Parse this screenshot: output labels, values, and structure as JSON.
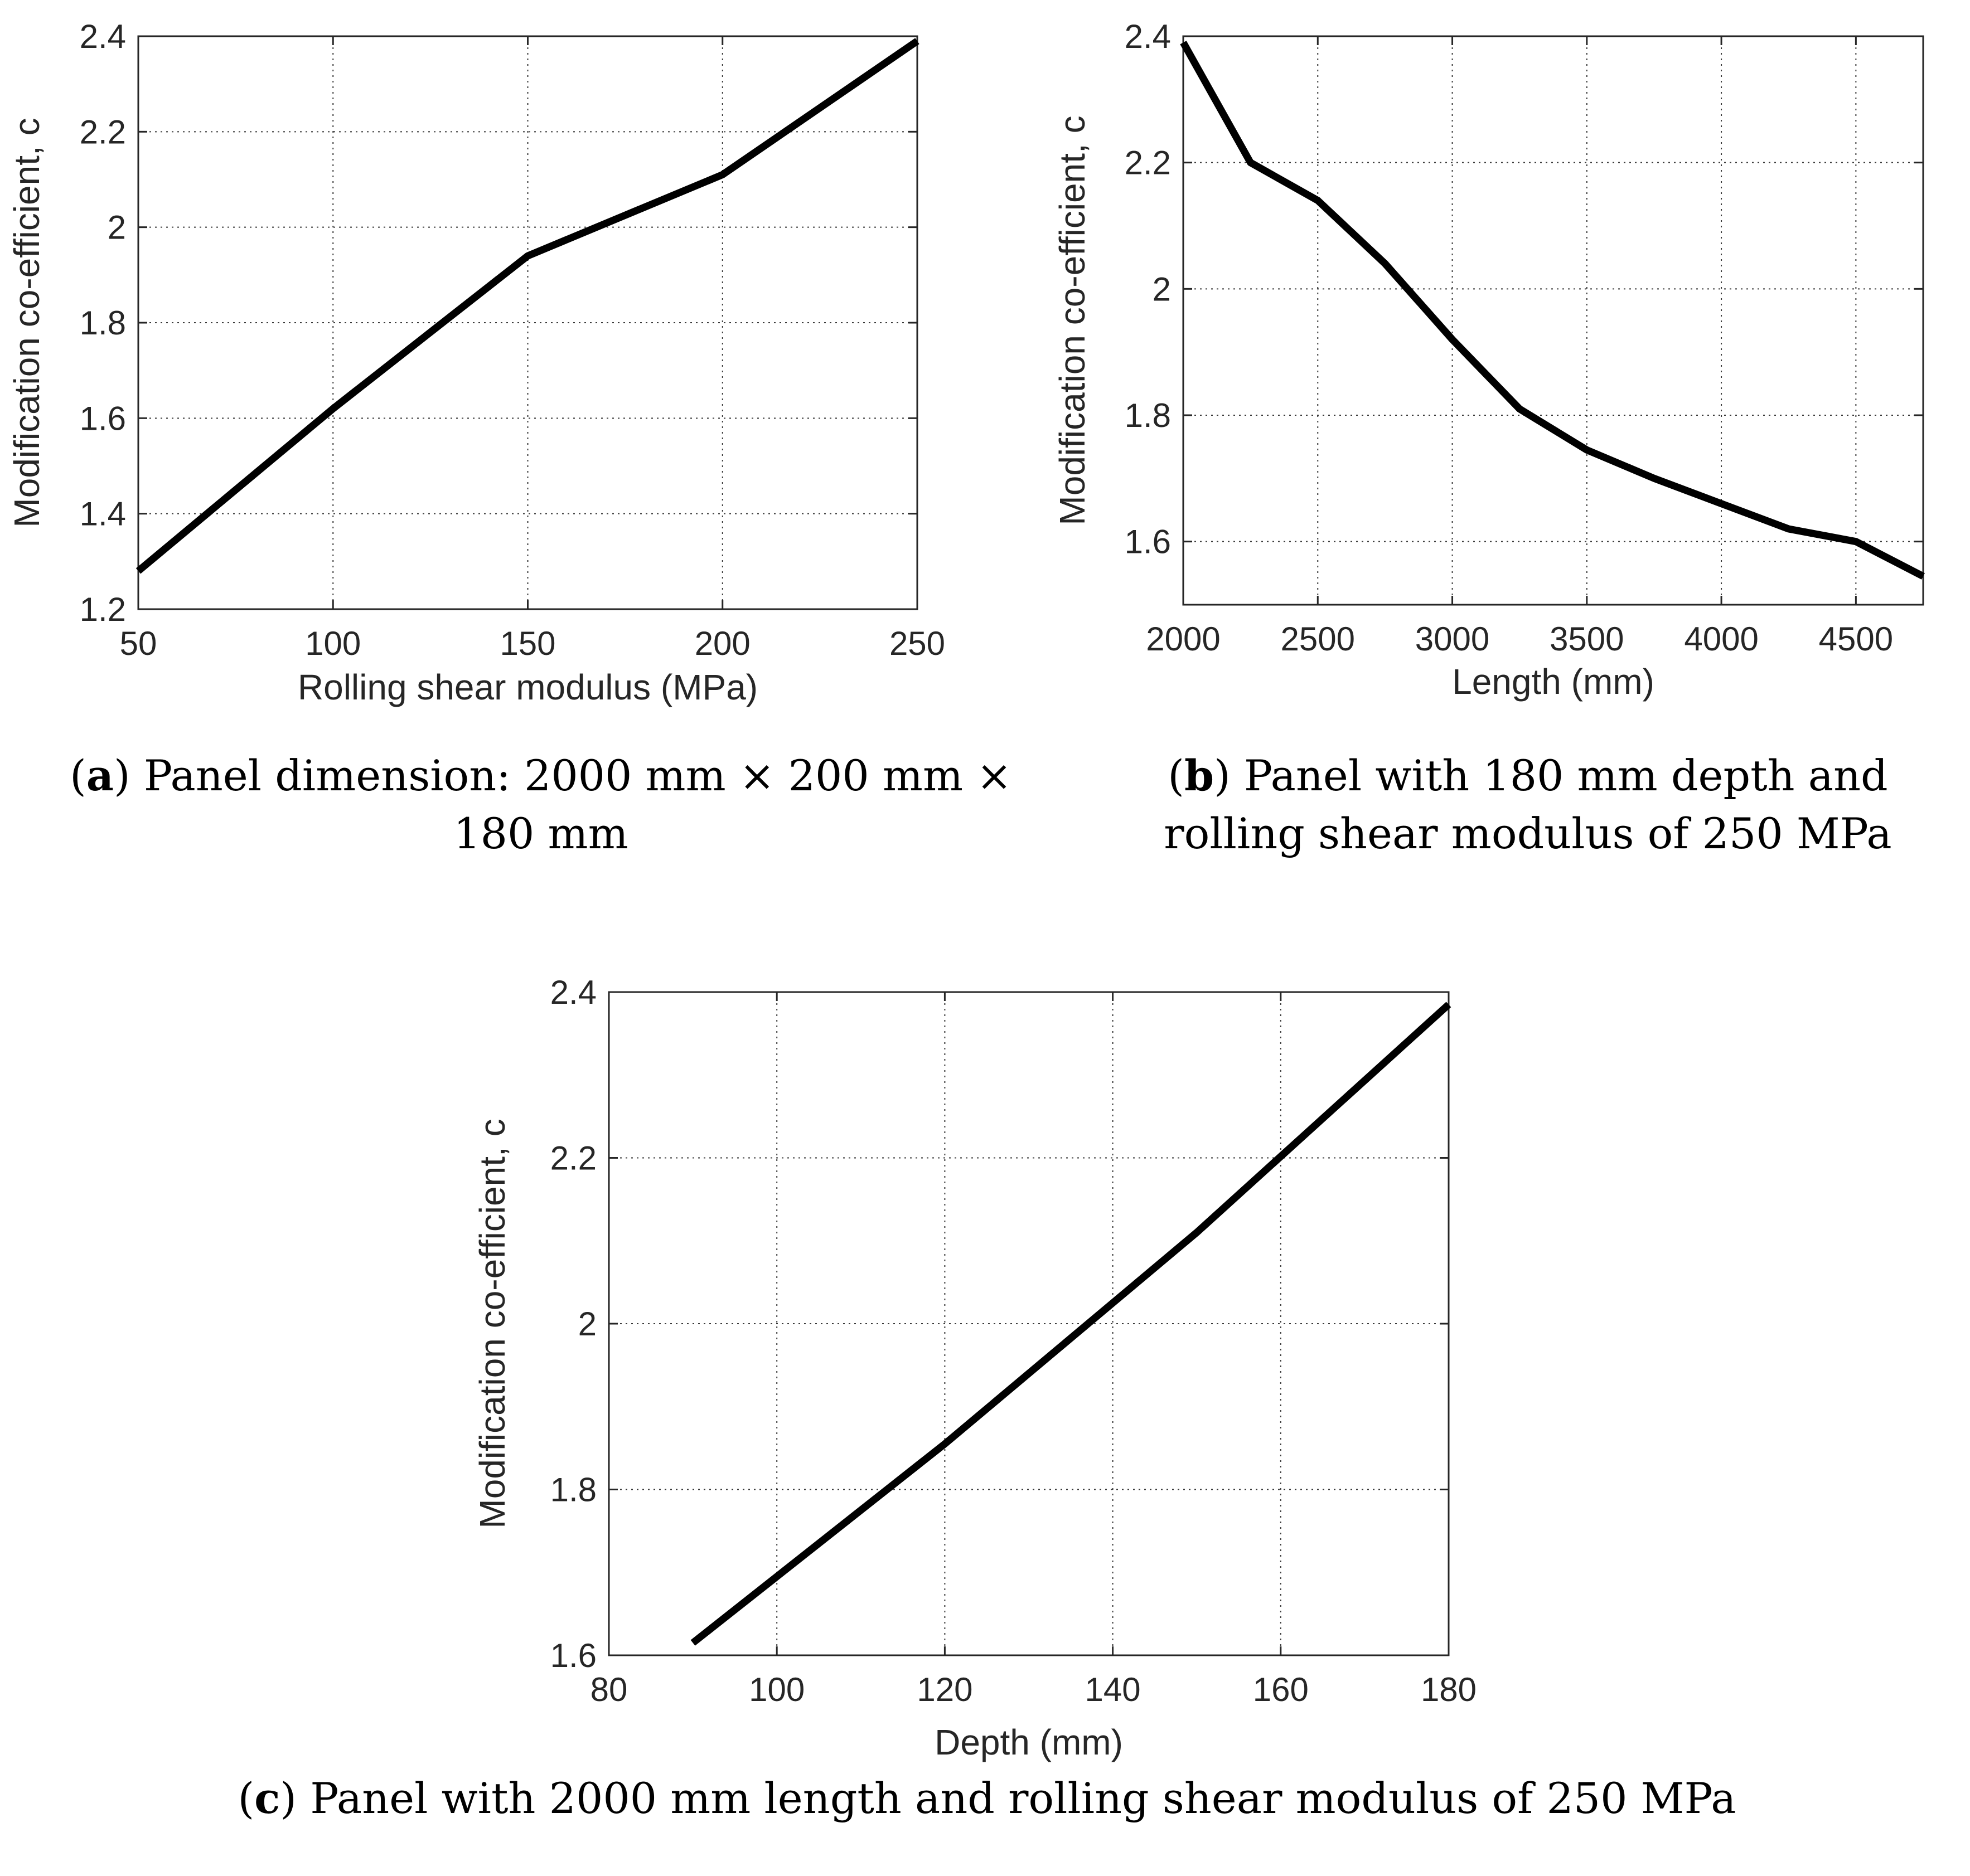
{
  "chart_data": [
    {
      "id": "a",
      "type": "line",
      "xlabel": "Rolling shear modulus (MPa)",
      "ylabel": "Modification co-efficient, c",
      "xlim": [
        50,
        250
      ],
      "ylim": [
        1.2,
        2.4
      ],
      "xticks": [
        50,
        100,
        150,
        200,
        250
      ],
      "xtick_labels": [
        "50",
        "100",
        "150",
        "200",
        "250"
      ],
      "yticks": [
        1.2,
        1.4,
        1.6,
        1.8,
        2.0,
        2.2,
        2.4
      ],
      "ytick_labels": [
        "1.2",
        "1.4",
        "1.6",
        "1.8",
        "2",
        "2.2",
        "2.4"
      ],
      "grid": true,
      "series": [
        {
          "name": "c",
          "x": [
            50,
            100,
            150,
            200,
            250
          ],
          "y": [
            1.28,
            1.62,
            1.94,
            2.11,
            2.39
          ]
        }
      ],
      "caption": {
        "label": "a",
        "text": "Panel dimension: 2000 mm × 200 mm × 180 mm"
      }
    },
    {
      "id": "b",
      "type": "line",
      "xlabel": "Length (mm)",
      "ylabel": "Modification co-efficient, c",
      "xlim": [
        2000,
        4750
      ],
      "ylim": [
        1.5,
        2.4
      ],
      "xticks": [
        2000,
        2500,
        3000,
        3500,
        4000,
        4500
      ],
      "xtick_labels": [
        "2000",
        "2500",
        "3000",
        "3500",
        "4000",
        "4500"
      ],
      "yticks": [
        1.6,
        1.8,
        2.0,
        2.2,
        2.4
      ],
      "ytick_labels": [
        "1.6",
        "1.8",
        "2",
        "2.2",
        "2.4"
      ],
      "grid": true,
      "series": [
        {
          "name": "c",
          "x": [
            2000,
            2250,
            2500,
            2750,
            3000,
            3250,
            3500,
            3750,
            4000,
            4250,
            4500,
            4750
          ],
          "y": [
            2.39,
            2.2,
            2.14,
            2.04,
            1.92,
            1.81,
            1.745,
            1.7,
            1.66,
            1.62,
            1.6,
            1.545
          ]
        }
      ],
      "caption": {
        "label": "b",
        "text": "Panel with 180 mm depth and rolling shear modulus of 250 MPa"
      }
    },
    {
      "id": "c",
      "type": "line",
      "xlabel": "Depth (mm)",
      "ylabel": "Modification co-efficient, c",
      "xlim": [
        80,
        180
      ],
      "ylim": [
        1.6,
        2.4
      ],
      "xticks": [
        80,
        100,
        120,
        140,
        160,
        180
      ],
      "xtick_labels": [
        "80",
        "100",
        "120",
        "140",
        "160",
        "180"
      ],
      "yticks": [
        1.6,
        1.8,
        2.0,
        2.2,
        2.4
      ],
      "ytick_labels": [
        "1.6",
        "1.8",
        "2",
        "2.2",
        "2.4"
      ],
      "grid": true,
      "series": [
        {
          "name": "c",
          "x": [
            90,
            120,
            150,
            180
          ],
          "y": [
            1.615,
            1.855,
            2.11,
            2.385
          ]
        }
      ],
      "caption": {
        "label": "c",
        "text": "Panel with 2000 mm length and rolling shear modulus of 250 MPa"
      }
    }
  ]
}
